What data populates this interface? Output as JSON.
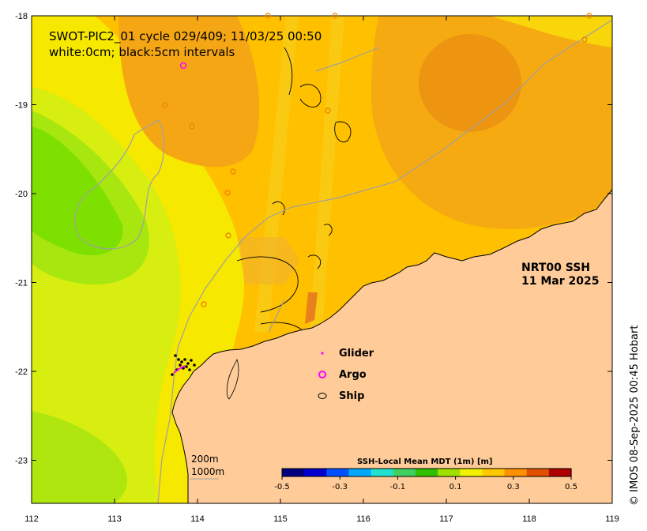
{
  "title": {
    "line1": "SWOT-PIC2_01 cycle 029/409; 11/03/25 00:50",
    "line2": "white:0cm; black:5cm intervals"
  },
  "product": {
    "line1": "NRT00 SSH",
    "line2": "11 Mar 2025"
  },
  "legend": {
    "glider": "Glider",
    "argo": "Argo",
    "ship": "Ship",
    "glider_color": "#ff00ff",
    "argo_color": "#ff00ff",
    "ship_color": "#000000"
  },
  "depth_contours": {
    "shallow": "200m",
    "deep": "1000m"
  },
  "colorbar": {
    "title": "SSH-Local Mean MDT (1m) [m]",
    "ticks": [
      "-0.5",
      "-0.3",
      "-0.1",
      "0.1",
      "0.3",
      "0.5"
    ],
    "colors": [
      "#00007f",
      "#0000d0",
      "#0050ff",
      "#00a8ff",
      "#20e0d0",
      "#40d060",
      "#30c000",
      "#a0e000",
      "#f0f000",
      "#ffc800",
      "#ff9000",
      "#e05000",
      "#b00000"
    ]
  },
  "axes": {
    "x_ticks": [
      "112",
      "113",
      "114",
      "115",
      "116",
      "117",
      "118",
      "119"
    ],
    "y_ticks": [
      "-18",
      "-19",
      "-20",
      "-21",
      "-22",
      "-23"
    ]
  },
  "colors": {
    "land": "#ffcc99",
    "ocean_base": "#ffc000",
    "high": "#f59e10",
    "low": "#7ee000"
  },
  "copyright": "© IMOS 08-Sep-2025 00:45 Hobart"
}
